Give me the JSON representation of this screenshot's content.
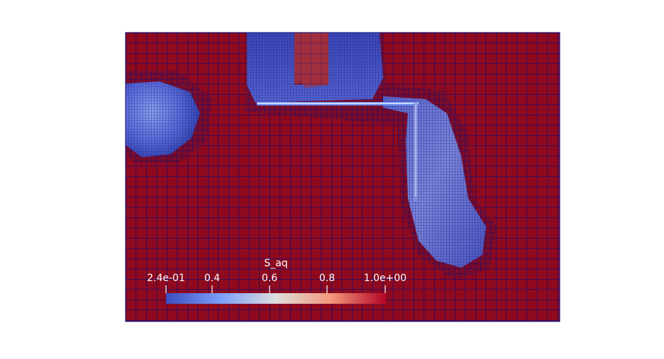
{
  "colorbar": {
    "title": "S_aq",
    "min_label": "2.4e-01",
    "max_label": "1.0e+00",
    "ticks": [
      "0.4",
      "0.6",
      "0.8"
    ],
    "colormap": "cool-to-warm",
    "colors": {
      "low": "#3b4cc0",
      "mid": "#dddddd",
      "high": "#b40426"
    }
  },
  "mesh": {
    "background_value": 1.0,
    "fill_color": "#8f0a1e",
    "grid_color": "#0a0a7a"
  }
}
